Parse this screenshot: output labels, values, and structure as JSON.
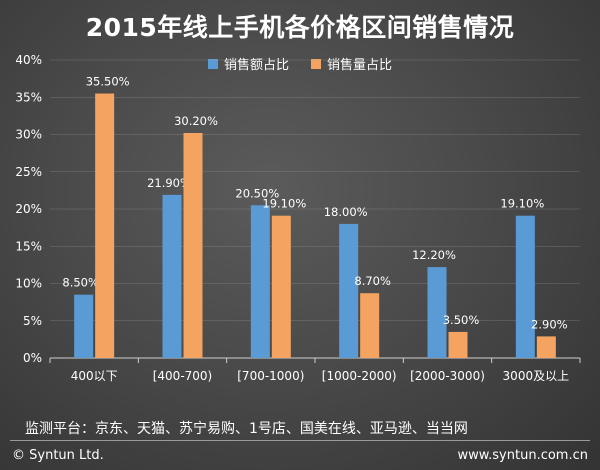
{
  "colors": {
    "series1": "#5b9bd5",
    "series2": "#f4a460",
    "text": "#ffffff",
    "gridline": "#a0a0a0",
    "axis": "#cfcfcf"
  },
  "footer": {
    "monitor_text": "监测平台：京东、天猫、苏宁易购、1号店、国美在线、亚马逊、当当网",
    "copyright": "© Syntun Ltd.",
    "website": "www.syntun.com.cn"
  },
  "chart_data": {
    "type": "bar",
    "title": "2015年线上手机各价格区间销售情况",
    "categories": [
      "400以下",
      "[400-700)",
      "[700-1000)",
      "[1000-2000)",
      "[2000-3000)",
      "3000及以上"
    ],
    "series": [
      {
        "name": "销售额占比",
        "values": [
          8.5,
          21.9,
          20.5,
          18.0,
          12.2,
          19.1
        ],
        "labels": [
          "8.50%",
          "21.90%",
          "20.50%",
          "18.00%",
          "12.20%",
          "19.10%"
        ]
      },
      {
        "name": "销售量占比",
        "values": [
          35.5,
          30.2,
          19.1,
          8.7,
          3.5,
          2.9
        ],
        "labels": [
          "35.50%",
          "30.20%",
          "19.10%",
          "8.70%",
          "3.50%",
          "2.90%"
        ]
      }
    ],
    "ylim": [
      0,
      40
    ],
    "yticks": [
      "0%",
      "5%",
      "10%",
      "15%",
      "20%",
      "25%",
      "30%",
      "35%",
      "40%"
    ],
    "xlabel": "",
    "ylabel": "",
    "grid": true,
    "legend_position": "top"
  }
}
